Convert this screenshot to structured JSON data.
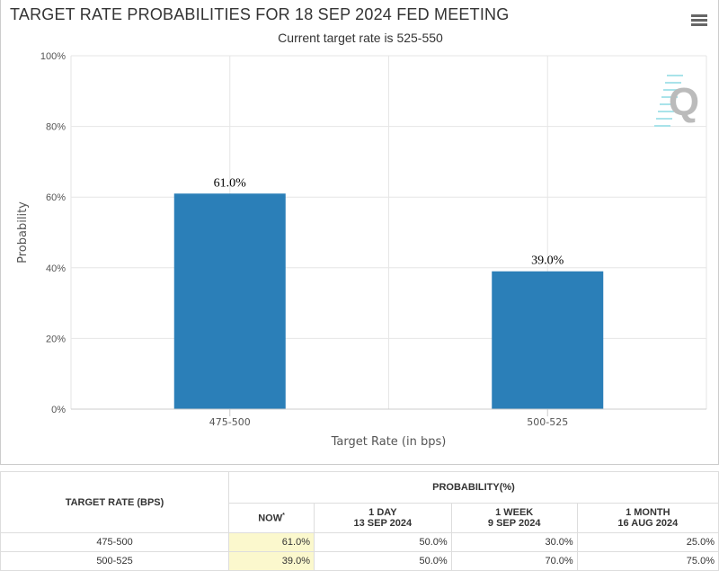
{
  "chart_data": {
    "type": "bar",
    "title": "TARGET RATE PROBABILITIES FOR 18 SEP 2024 FED MEETING",
    "subtitle": "Current target rate is 525-550",
    "xlabel": "Target Rate (in bps)",
    "ylabel": "Probability",
    "categories": [
      "475-500",
      "500-525"
    ],
    "values": [
      61.0,
      39.0
    ],
    "data_labels": [
      "61.0%",
      "39.0%"
    ],
    "ylim": [
      0,
      100
    ],
    "yticks": [
      "0%",
      "20%",
      "40%",
      "60%",
      "80%",
      "100%"
    ],
    "grid": true,
    "color": "#2b7fb8"
  },
  "menu_icon": "hamburger-icon",
  "watermark": "Q",
  "table": {
    "header_rate": "TARGET RATE (BPS)",
    "header_prob": "PROBABILITY(%)",
    "cols": [
      {
        "l1": "NOW",
        "mark": "*",
        "l2": ""
      },
      {
        "l1": "1 DAY",
        "l2": "13 SEP 2024"
      },
      {
        "l1": "1 WEEK",
        "l2": "9 SEP 2024"
      },
      {
        "l1": "1 MONTH",
        "l2": "16 AUG 2024"
      }
    ],
    "rows": [
      {
        "rate": "475-500",
        "vals": [
          "61.0%",
          "50.0%",
          "30.0%",
          "25.0%"
        ]
      },
      {
        "rate": "500-525",
        "vals": [
          "39.0%",
          "50.0%",
          "70.0%",
          "75.0%"
        ]
      }
    ],
    "highlight": "#fbf8cd"
  }
}
